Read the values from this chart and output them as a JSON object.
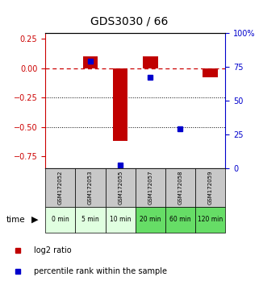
{
  "title": "GDS3030 / 66",
  "samples": [
    "GSM172052",
    "GSM172053",
    "GSM172055",
    "GSM172057",
    "GSM172058",
    "GSM172059"
  ],
  "time_labels": [
    "0 min",
    "5 min",
    "10 min",
    "20 min",
    "60 min",
    "120 min"
  ],
  "log2_ratio": [
    0.0,
    0.1,
    -0.62,
    0.1,
    0.0,
    -0.08
  ],
  "percentile_rank": [
    null,
    79,
    2,
    67,
    29,
    null
  ],
  "ylim_left": [
    -0.85,
    0.3
  ],
  "ylim_right": [
    0,
    100
  ],
  "yticks_left": [
    0.25,
    0.0,
    -0.25,
    -0.5,
    -0.75
  ],
  "yticks_right": [
    100,
    75,
    50,
    25,
    0
  ],
  "bar_color": "#c00000",
  "dot_color": "#0000cc",
  "dashed_line_color": "#cc0000",
  "bg_color_samples": "#c8c8c8",
  "bg_color_time_0": "#e0ffe0",
  "bg_color_time_1": "#e0ffe0",
  "bg_color_time_2": "#e0ffe0",
  "bg_color_time_3": "#66dd66",
  "bg_color_time_4": "#66dd66",
  "bg_color_time_5": "#66dd66",
  "left_axis_color": "#cc0000",
  "right_axis_color": "#0000cc",
  "bar_width": 0.5
}
